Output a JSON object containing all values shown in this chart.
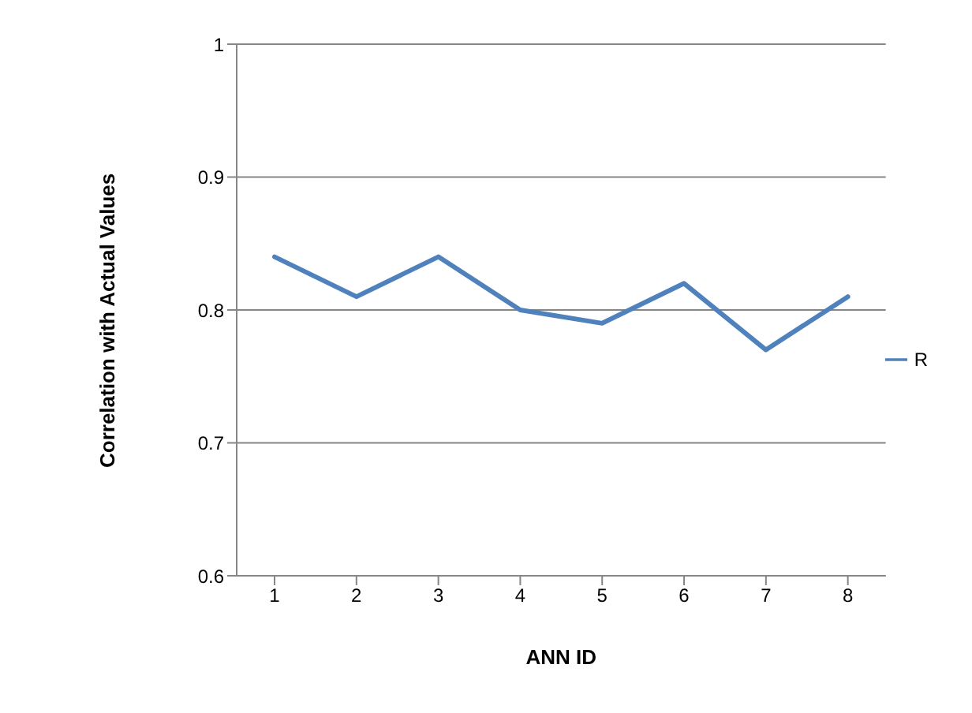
{
  "chart_data": {
    "type": "line",
    "xlabel": "ANN ID",
    "ylabel": "Correlation with Actual Values",
    "categories": [
      "1",
      "2",
      "3",
      "4",
      "5",
      "6",
      "7",
      "8"
    ],
    "series": [
      {
        "name": "R",
        "color": "#4f81bd",
        "values": [
          0.84,
          0.81,
          0.84,
          0.8,
          0.79,
          0.82,
          0.77,
          0.81
        ]
      }
    ],
    "ylim": [
      0.6,
      1
    ],
    "yticks": [
      0.6,
      0.7,
      0.8,
      0.9,
      1
    ],
    "grid": "y",
    "legend": "right",
    "marker": "none"
  }
}
